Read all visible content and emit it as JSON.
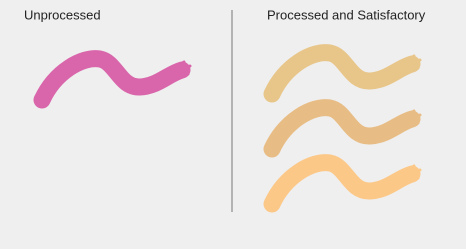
{
  "panels": [
    {
      "label": "Unprocessed"
    },
    {
      "label": "Processed and Satisfactory"
    }
  ]
}
